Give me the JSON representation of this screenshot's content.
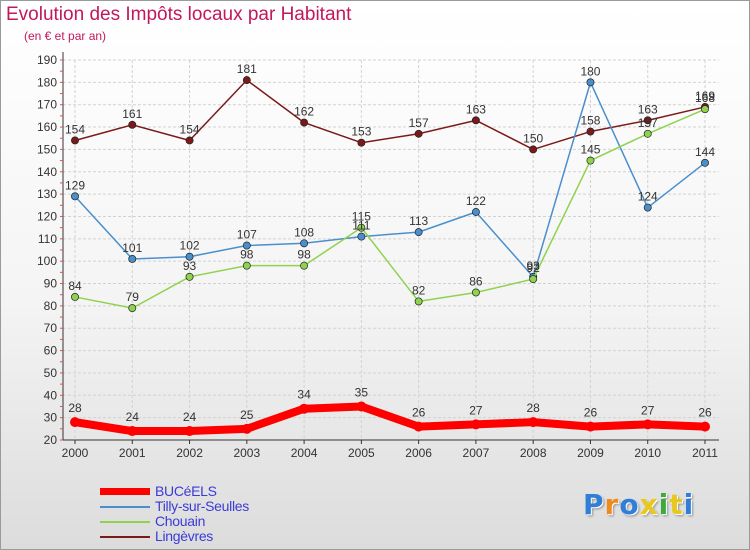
{
  "chart_data": {
    "type": "line",
    "title": "Evolution des Impôts locaux par Habitant",
    "subtitle": "(en € et par an)",
    "x": [
      "2000",
      "2001",
      "2002",
      "2003",
      "2004",
      "2005",
      "2006",
      "2007",
      "2008",
      "2009",
      "2010",
      "2011"
    ],
    "ylim": [
      20,
      190
    ],
    "yticks": [
      20,
      30,
      40,
      50,
      60,
      70,
      80,
      90,
      100,
      110,
      120,
      130,
      140,
      150,
      160,
      170,
      180,
      190
    ],
    "grid": true,
    "legend_position": "bottom-left",
    "series": [
      {
        "name": "Lingèvres",
        "color": "#7b1a1a",
        "values": [
          154,
          161,
          154,
          181,
          162,
          153,
          157,
          163,
          150,
          158,
          163,
          169
        ],
        "labels": [
          "154",
          "161",
          "154",
          "181",
          "162",
          "153",
          "157",
          "163",
          "150",
          "158",
          "163",
          "169"
        ]
      },
      {
        "name": "Tilly-sur-Seulles",
        "color": "#4a8fcc",
        "values": [
          129,
          101,
          102,
          107,
          108,
          111,
          113,
          122,
          93,
          180,
          124,
          144
        ],
        "labels": [
          "129",
          "101",
          "102",
          "107",
          "108",
          "111",
          "113",
          "122",
          "93",
          "180",
          "124",
          "144"
        ]
      },
      {
        "name": "Chouain",
        "color": "#8fd24e",
        "values": [
          84,
          79,
          93,
          98,
          98,
          115,
          82,
          86,
          92,
          145,
          157,
          168
        ],
        "labels": [
          "84",
          "79",
          "93",
          "98",
          "98",
          "115",
          "82",
          "86",
          "92",
          "145",
          "157",
          "168"
        ]
      },
      {
        "name": "BUCéELS",
        "color": "#ff0000",
        "values": [
          28,
          24,
          24,
          25,
          34,
          35,
          26,
          27,
          28,
          26,
          27,
          26
        ],
        "labels": [
          "28",
          "24",
          "24",
          "25",
          "34",
          "35",
          "26",
          "27",
          "28",
          "26",
          "27",
          "26"
        ]
      }
    ]
  },
  "legend": {
    "items": [
      "BUCéELS",
      "Tilly-sur-Seulles",
      "Chouain",
      "Lingèvres"
    ]
  },
  "branding": {
    "logo_text": "Proxiti",
    "letter_colors": [
      "#2f7fd8",
      "#f08a1c",
      "#2f7fd8",
      "#e8c81a",
      "#3caa3c",
      "#e8c81a",
      "#2f7fd8"
    ]
  }
}
